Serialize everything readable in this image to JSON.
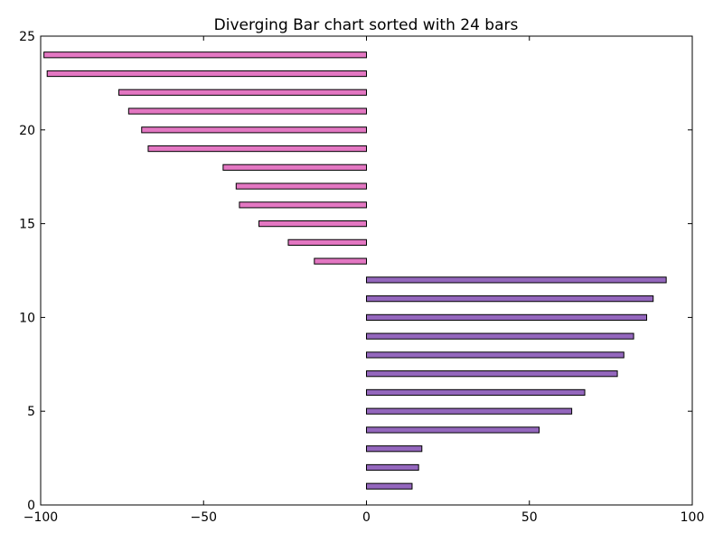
{
  "chart_data": {
    "type": "bar",
    "orientation": "horizontal",
    "title": "Diverging Bar chart sorted with 24 bars",
    "xlabel": "",
    "ylabel": "",
    "xlim": [
      -100,
      100
    ],
    "ylim": [
      0,
      25
    ],
    "xticks": [
      -100,
      -50,
      0,
      50,
      100
    ],
    "xtick_labels": [
      "−100",
      "−50",
      "0",
      "50",
      "100"
    ],
    "yticks": [
      0,
      5,
      10,
      15,
      20,
      25
    ],
    "ytick_labels": [
      "0",
      "5",
      "10",
      "15",
      "20",
      "25"
    ],
    "grid": false,
    "legend": "none",
    "colors": {
      "positive": "#9467bd",
      "negative": "#e377c2",
      "edge": "#000000"
    },
    "bars": [
      {
        "y": 1,
        "value": 14
      },
      {
        "y": 2,
        "value": 16
      },
      {
        "y": 3,
        "value": 17
      },
      {
        "y": 4,
        "value": 53
      },
      {
        "y": 5,
        "value": 63
      },
      {
        "y": 6,
        "value": 67
      },
      {
        "y": 7,
        "value": 77
      },
      {
        "y": 8,
        "value": 79
      },
      {
        "y": 9,
        "value": 82
      },
      {
        "y": 10,
        "value": 86
      },
      {
        "y": 11,
        "value": 88
      },
      {
        "y": 12,
        "value": 92
      },
      {
        "y": 13,
        "value": -16
      },
      {
        "y": 14,
        "value": -24
      },
      {
        "y": 15,
        "value": -33
      },
      {
        "y": 16,
        "value": -39
      },
      {
        "y": 17,
        "value": -40
      },
      {
        "y": 18,
        "value": -44
      },
      {
        "y": 19,
        "value": -67
      },
      {
        "y": 20,
        "value": -69
      },
      {
        "y": 21,
        "value": -73
      },
      {
        "y": 22,
        "value": -76
      },
      {
        "y": 23,
        "value": -98
      },
      {
        "y": 24,
        "value": -99
      }
    ]
  }
}
